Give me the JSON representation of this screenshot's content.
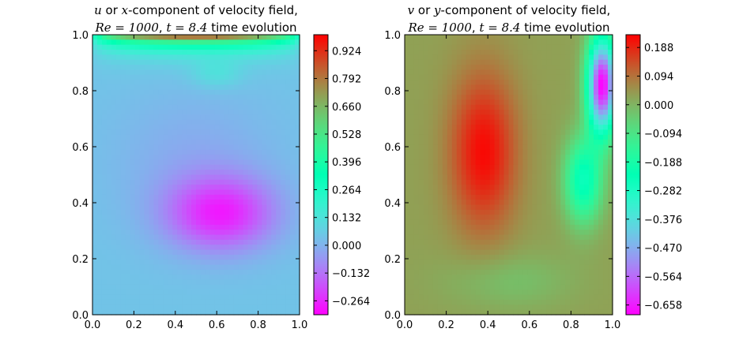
{
  "chart_data": [
    {
      "type": "contour",
      "title_line1": {
        "var": "u",
        "mid": " or ",
        "axis": "x",
        "rest": "-component of velocity field,"
      },
      "title_line2": {
        "re_math": "Re = 1000",
        "sep": ", ",
        "t_math": "t = 8.4",
        "rest": " time evolution"
      },
      "xlim": [
        0.0,
        1.0
      ],
      "ylim": [
        0.0,
        1.0
      ],
      "x_ticks": [
        "0.0",
        "0.2",
        "0.4",
        "0.6",
        "0.8",
        "1.0"
      ],
      "y_ticks": [
        "0.0",
        "0.2",
        "0.4",
        "0.6",
        "0.8",
        "1.0"
      ],
      "colorbar": {
        "colormap": "rainbow",
        "range": [
          -0.33,
          1.0
        ],
        "ticks": [
          0.924,
          0.792,
          0.66,
          0.528,
          0.396,
          0.264,
          0.132,
          0.0,
          -0.132,
          -0.264
        ],
        "tick_labels": [
          "0.924",
          "0.792",
          "0.660",
          "0.528",
          "0.396",
          "0.264",
          "0.132",
          "0.000",
          "−0.132",
          "−0.264"
        ]
      },
      "features": [
        {
          "kind": "max",
          "x": 0.5,
          "y": 1.0,
          "value": 1.0
        },
        {
          "kind": "min",
          "x": 0.64,
          "y": 0.34,
          "value": -0.33
        },
        {
          "kind": "vortex",
          "x": 0.6,
          "y": 0.86
        }
      ]
    },
    {
      "type": "contour",
      "title_line1": {
        "var": "v",
        "mid": " or ",
        "axis": "y",
        "rest": "-component of velocity field,"
      },
      "title_line2": {
        "re_math": "Re = 1000",
        "sep": ", ",
        "t_math": "t = 8.4",
        "rest": " time evolution"
      },
      "xlim": [
        0.0,
        1.0
      ],
      "ylim": [
        0.0,
        1.0
      ],
      "x_ticks": [
        "0.0",
        "0.2",
        "0.4",
        "0.6",
        "0.8",
        "1.0"
      ],
      "y_ticks": [
        "0.0",
        "0.2",
        "0.4",
        "0.6",
        "0.8",
        "1.0"
      ],
      "colorbar": {
        "colormap": "rainbow",
        "range": [
          -0.69,
          0.23
        ],
        "ticks": [
          0.188,
          0.094,
          0.0,
          -0.094,
          -0.188,
          -0.282,
          -0.376,
          -0.47,
          -0.564,
          -0.658
        ],
        "tick_labels": [
          "0.188",
          "0.094",
          "0.000",
          "−0.094",
          "−0.188",
          "−0.282",
          "−0.376",
          "−0.470",
          "−0.564",
          "−0.658"
        ]
      },
      "features": [
        {
          "kind": "max",
          "x": 0.38,
          "y": 0.58,
          "value": 0.23
        },
        {
          "kind": "min",
          "x": 0.96,
          "y": 0.88,
          "value": -0.69
        }
      ]
    }
  ]
}
